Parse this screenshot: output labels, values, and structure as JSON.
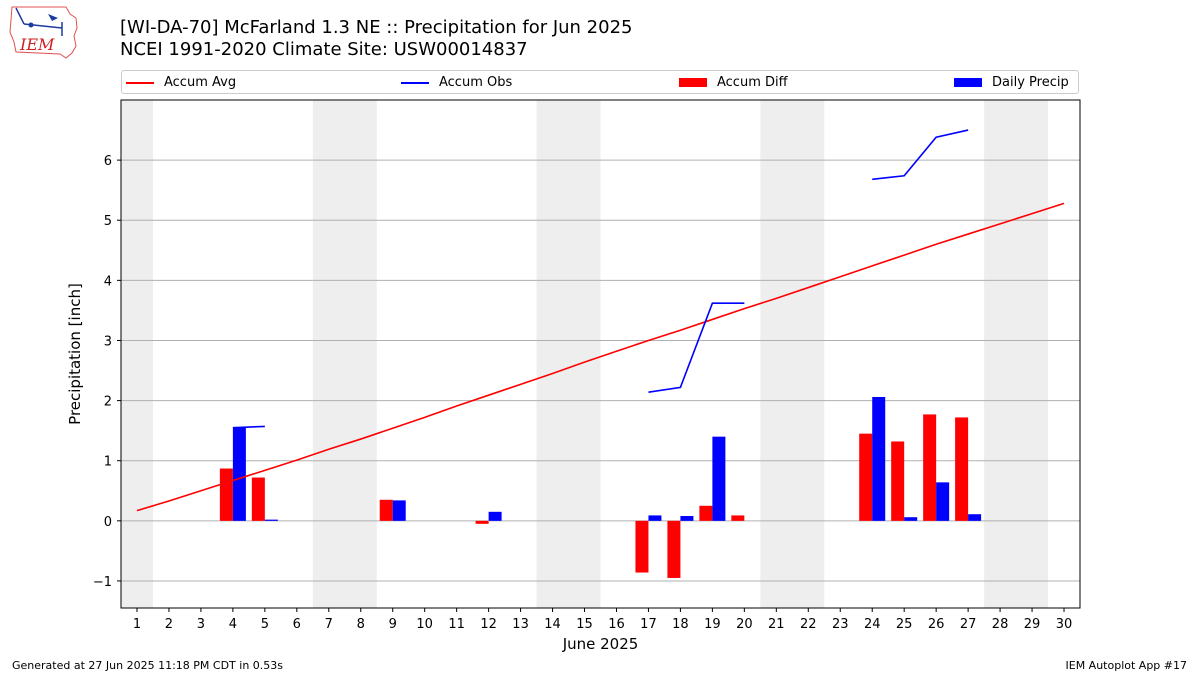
{
  "header": {
    "title_line1": "[WI-DA-70] McFarland 1.3 NE :: Precipitation for Jun 2025",
    "title_line2": "NCEI 1991-2020 Climate Site: USW00014837",
    "logo_text": "IEM"
  },
  "footer": {
    "generated": "Generated at 27 Jun 2025 11:18 PM CDT in 0.53s",
    "app": "IEM Autoplot App #17"
  },
  "legend": [
    {
      "label": "Accum Avg",
      "kind": "line",
      "color": "#ff0000"
    },
    {
      "label": "Accum Obs",
      "kind": "line",
      "color": "#0000ff"
    },
    {
      "label": "Accum Diff",
      "kind": "bar",
      "color": "#ff0000"
    },
    {
      "label": "Daily Precip",
      "kind": "bar",
      "color": "#0000ff"
    }
  ],
  "chart_data": {
    "type": "bar",
    "xlabel": "June 2025",
    "ylabel": "Precipitation [inch]",
    "xlim": [
      0.5,
      30.5
    ],
    "ylim": [
      -1.45,
      7.0
    ],
    "x": [
      1,
      2,
      3,
      4,
      5,
      6,
      7,
      8,
      9,
      10,
      11,
      12,
      13,
      14,
      15,
      16,
      17,
      18,
      19,
      20,
      21,
      22,
      23,
      24,
      25,
      26,
      27,
      28,
      29,
      30
    ],
    "yticks": [
      -1,
      0,
      1,
      2,
      3,
      4,
      5,
      6
    ],
    "grid": "horizontal",
    "weekend_shading": [
      [
        0.5,
        1.5
      ],
      [
        6.5,
        8.5
      ],
      [
        13.5,
        15.5
      ],
      [
        20.5,
        22.5
      ],
      [
        27.5,
        29.5
      ]
    ],
    "series": [
      {
        "name": "Accum Avg",
        "type": "line",
        "color": "#ff0000",
        "values": [
          0.17,
          0.33,
          0.5,
          0.67,
          0.84,
          1.01,
          1.19,
          1.36,
          1.54,
          1.72,
          1.91,
          2.09,
          2.27,
          2.45,
          2.64,
          2.82,
          3.0,
          3.17,
          3.35,
          3.53,
          3.7,
          3.88,
          4.06,
          4.24,
          4.42,
          4.6,
          4.77,
          4.94,
          5.11,
          5.28
        ]
      },
      {
        "name": "Accum Obs",
        "type": "line",
        "color": "#0000ff",
        "values": [
          null,
          null,
          null,
          1.55,
          1.57,
          null,
          null,
          null,
          null,
          null,
          null,
          null,
          null,
          null,
          null,
          null,
          2.14,
          2.22,
          3.62,
          3.62,
          null,
          null,
          null,
          5.68,
          5.74,
          6.38,
          6.5,
          null,
          null,
          null
        ]
      },
      {
        "name": "Accum Diff",
        "type": "bar",
        "color": "#ff0000",
        "values": [
          null,
          null,
          null,
          0.87,
          0.72,
          null,
          null,
          null,
          0.35,
          null,
          null,
          -0.05,
          null,
          null,
          null,
          null,
          -0.86,
          -0.95,
          0.25,
          0.09,
          null,
          null,
          null,
          1.45,
          1.32,
          1.77,
          1.72,
          null,
          null,
          null
        ]
      },
      {
        "name": "Daily Precip",
        "type": "bar",
        "color": "#0000ff",
        "values": [
          null,
          null,
          null,
          1.55,
          0.02,
          null,
          null,
          null,
          0.34,
          null,
          null,
          0.15,
          null,
          null,
          null,
          null,
          0.09,
          0.08,
          1.4,
          null,
          null,
          null,
          null,
          2.06,
          0.06,
          0.64,
          0.11,
          null,
          null,
          null
        ]
      }
    ]
  }
}
